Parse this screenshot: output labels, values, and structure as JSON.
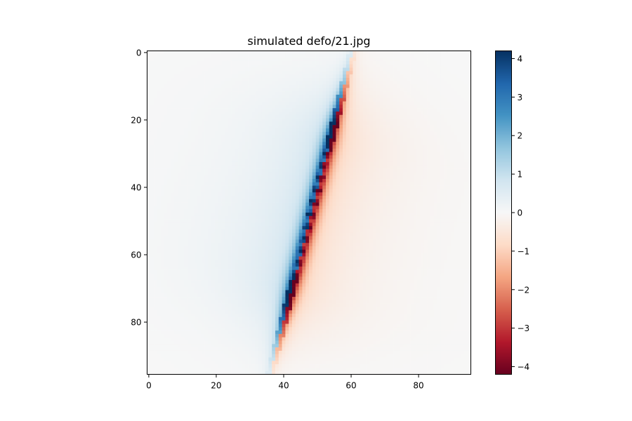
{
  "chart_data": {
    "type": "heatmap",
    "title": "simulated defo/21.jpg",
    "xlabel": "",
    "ylabel": "",
    "grid": false,
    "image_size": [
      96,
      96
    ],
    "xlim": [
      -0.5,
      95.5
    ],
    "ylim": [
      95.5,
      -0.5
    ],
    "x_ticks": [
      0,
      20,
      40,
      60,
      80
    ],
    "y_ticks": [
      0,
      20,
      40,
      60,
      80
    ],
    "colormap": "RdBu",
    "colormap_stops": [
      "#67001f",
      "#b2182b",
      "#d6604d",
      "#f4a582",
      "#fddbc7",
      "#f7f7f7",
      "#d1e5f0",
      "#92c5de",
      "#4393c3",
      "#2166ac",
      "#053061"
    ],
    "color_range": [
      -4.2,
      4.2
    ],
    "colorbar_ticks": [
      4,
      3,
      2,
      1,
      0,
      -1,
      -2,
      -3,
      -4
    ],
    "colorbar_tick_labels": [
      "4",
      "3",
      "2",
      "1",
      "0",
      "−1",
      "−2",
      "−3",
      "−4"
    ],
    "fault": {
      "top_end": [
        53,
        29
      ],
      "bottom_end": [
        43.5,
        66
      ],
      "peak_value": 4.2
    }
  }
}
